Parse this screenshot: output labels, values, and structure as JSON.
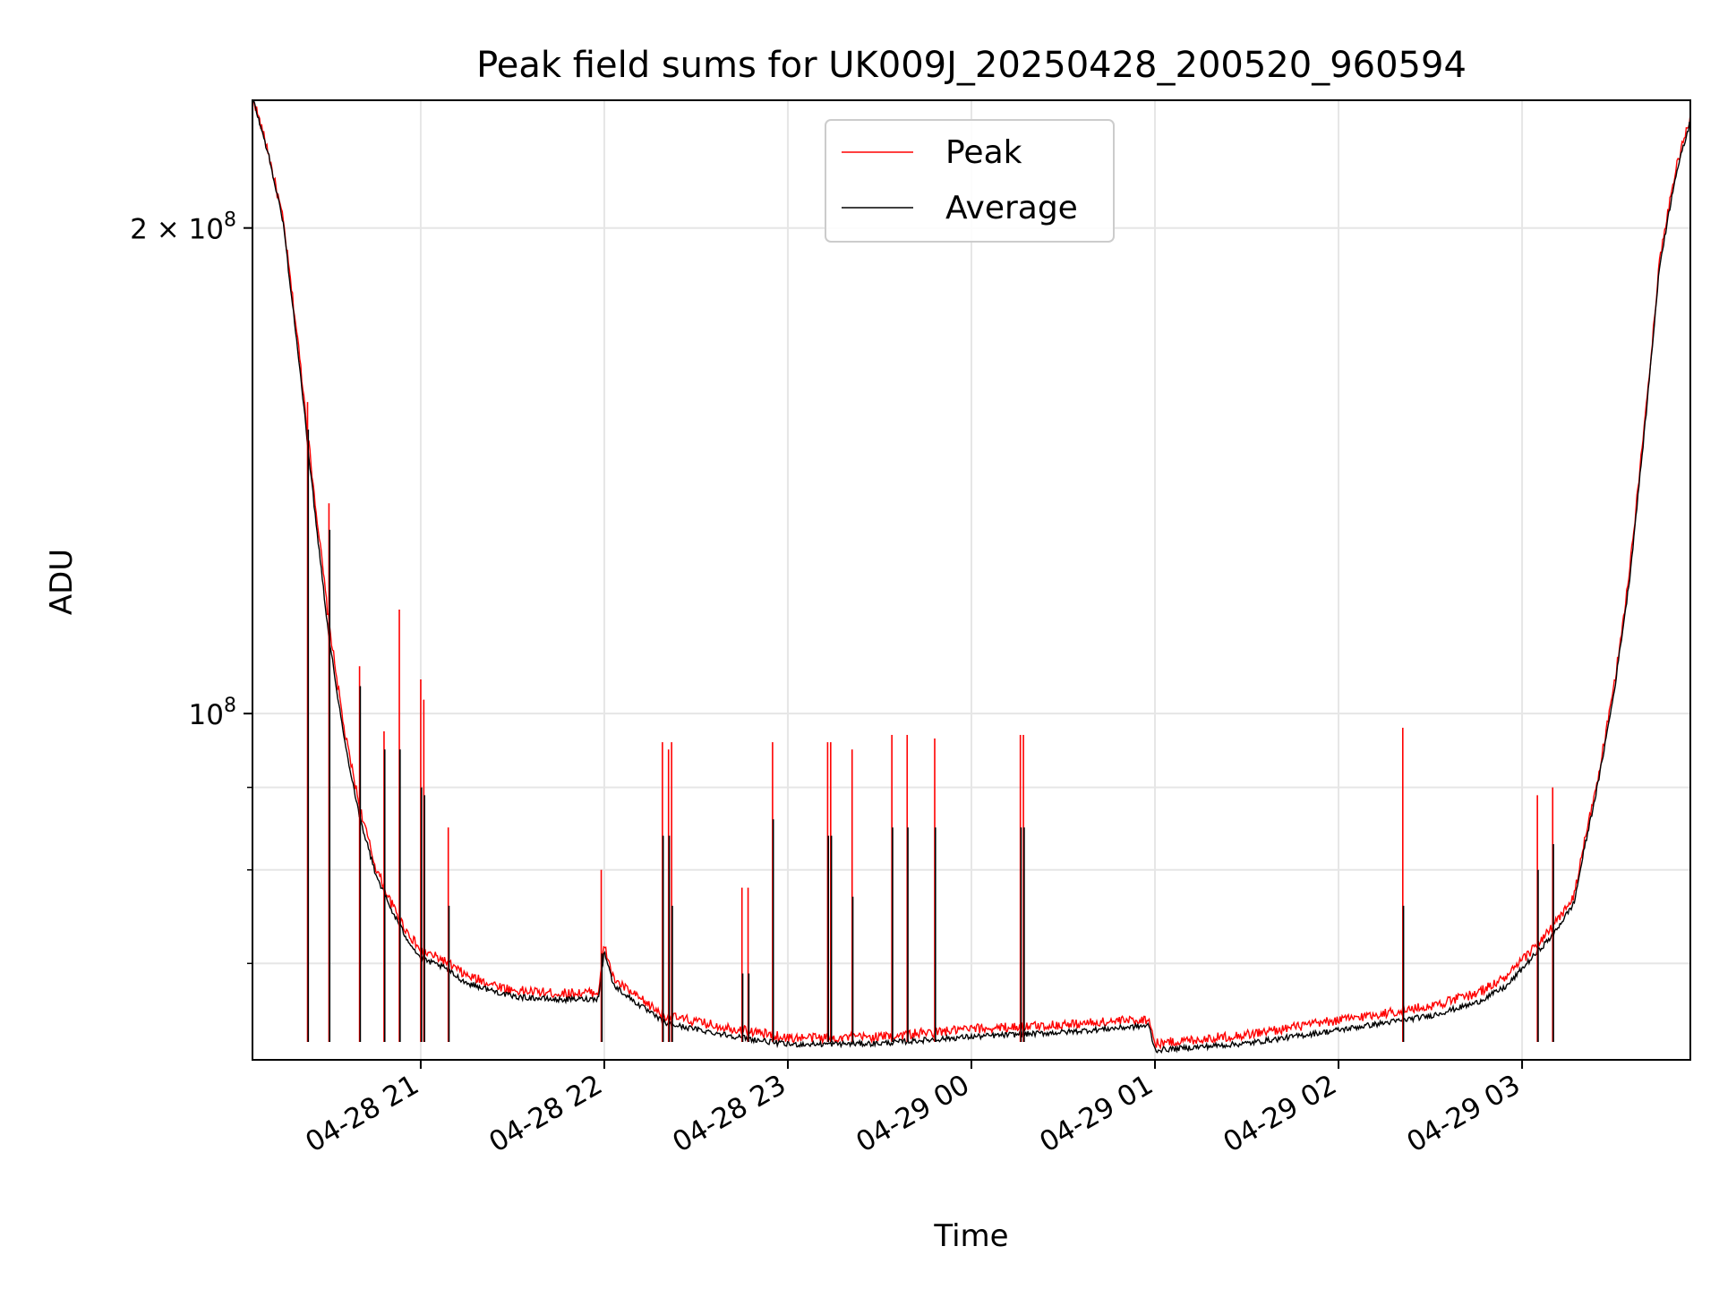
{
  "chart_data": {
    "type": "line",
    "title": "Peak field sums for UK009J_20250428_200520_960594",
    "xlabel": "Time",
    "ylabel": "ADU",
    "yscale": "log",
    "xlim": [
      "2025-04-28 20:05",
      "2025-04-29 03:55"
    ],
    "ylim": [
      61000000,
      240000000
    ],
    "grid": true,
    "legend_position": "top-center",
    "x_ticks": [
      "2025-04-28 21:00",
      "2025-04-28 22:00",
      "2025-04-28 23:00",
      "2025-04-29 00:00",
      "2025-04-29 01:00",
      "2025-04-29 02:00",
      "2025-04-29 03:00"
    ],
    "x_tick_labels": [
      "04-28 21",
      "04-28 22",
      "04-28 23",
      "04-29 00",
      "04-29 01",
      "04-29 02",
      "04-29 03"
    ],
    "y_major_ticks": [
      {
        "value": 100000000,
        "mantissa": "",
        "exponent": "8"
      },
      {
        "value": 200000000,
        "mantissa": "2",
        "exponent": "8"
      }
    ],
    "y_minor_ticks": [
      60000000,
      70000000,
      80000000,
      90000000,
      300000000
    ],
    "series": [
      {
        "name": "Peak",
        "color": "#ff0000",
        "x": [
          "2025-04-28 20:05",
          "2025-04-28 20:10",
          "2025-04-28 20:15",
          "2025-04-28 20:20",
          "2025-04-28 20:25",
          "2025-04-28 20:30",
          "2025-04-28 20:35",
          "2025-04-28 20:40",
          "2025-04-28 20:45",
          "2025-04-28 20:50",
          "2025-04-28 20:55",
          "2025-04-28 21:00",
          "2025-04-28 21:07",
          "2025-04-28 21:15",
          "2025-04-28 21:30",
          "2025-04-28 21:45",
          "2025-04-28 21:58",
          "2025-04-28 22:00",
          "2025-04-28 22:03",
          "2025-04-28 22:10",
          "2025-04-28 22:20",
          "2025-04-28 22:35",
          "2025-04-28 22:50",
          "2025-04-28 23:00",
          "2025-04-28 23:30",
          "2025-04-29 00:00",
          "2025-04-29 00:30",
          "2025-04-29 00:58",
          "2025-04-29 01:00",
          "2025-04-29 01:30",
          "2025-04-29 02:00",
          "2025-04-29 02:30",
          "2025-04-29 02:45",
          "2025-04-29 02:55",
          "2025-04-29 03:00",
          "2025-04-29 03:10",
          "2025-04-29 03:17",
          "2025-04-29 03:20",
          "2025-04-29 03:25",
          "2025-04-29 03:30",
          "2025-04-29 03:35",
          "2025-04-29 03:40",
          "2025-04-29 03:45",
          "2025-04-29 03:50",
          "2025-04-29 03:55"
        ],
        "values": [
          240000000,
          222000000,
          201000000,
          168000000,
          137000000,
          113000000,
          97000000,
          87000000,
          80000000,
          76000000,
          73000000,
          70800000,
          69900000,
          68300000,
          66900000,
          66600000,
          66700000,
          71300000,
          68000000,
          66400000,
          64500000,
          63700000,
          63000000,
          62500000,
          62600000,
          63300000,
          63700000,
          64200000,
          62000000,
          62800000,
          64100000,
          65400000,
          66600000,
          68200000,
          69800000,
          73200000,
          76500000,
          82000000,
          91000000,
          103000000,
          121000000,
          150000000,
          190000000,
          215000000,
          233000000
        ]
      },
      {
        "name": "Average",
        "color": "#000000",
        "x": [
          "2025-04-28 20:05",
          "2025-04-28 20:10",
          "2025-04-28 20:15",
          "2025-04-28 20:20",
          "2025-04-28 20:25",
          "2025-04-28 20:30",
          "2025-04-28 20:35",
          "2025-04-28 20:40",
          "2025-04-28 20:45",
          "2025-04-28 20:50",
          "2025-04-28 20:55",
          "2025-04-28 21:00",
          "2025-04-28 21:07",
          "2025-04-28 21:15",
          "2025-04-28 21:30",
          "2025-04-28 21:45",
          "2025-04-28 21:58",
          "2025-04-28 22:00",
          "2025-04-28 22:03",
          "2025-04-28 22:10",
          "2025-04-28 22:20",
          "2025-04-28 22:35",
          "2025-04-28 22:50",
          "2025-04-28 23:00",
          "2025-04-28 23:30",
          "2025-04-29 00:00",
          "2025-04-29 00:30",
          "2025-04-29 00:58",
          "2025-04-29 01:00",
          "2025-04-29 01:30",
          "2025-04-29 02:00",
          "2025-04-29 02:30",
          "2025-04-29 02:45",
          "2025-04-29 02:55",
          "2025-04-29 03:00",
          "2025-04-29 03:10",
          "2025-04-29 03:17",
          "2025-04-29 03:20",
          "2025-04-29 03:25",
          "2025-04-29 03:30",
          "2025-04-29 03:35",
          "2025-04-29 03:40",
          "2025-04-29 03:45",
          "2025-04-29 03:50",
          "2025-04-29 03:55"
        ],
        "values": [
          240000000,
          222000000,
          201000000,
          166000000,
          135000000,
          111000000,
          96000000,
          86000000,
          79500000,
          75500000,
          72500000,
          70200000,
          69400000,
          67800000,
          66500000,
          66200000,
          66300000,
          71000000,
          67600000,
          66000000,
          64000000,
          63200000,
          62500000,
          62100000,
          62200000,
          62800000,
          63200000,
          63800000,
          61600000,
          62200000,
          63400000,
          64700000,
          65900000,
          67500000,
          69200000,
          72600000,
          76000000,
          81500000,
          90500000,
          102500000,
          120000000,
          149000000,
          189000000,
          214000000,
          232000000
        ]
      }
    ],
    "spikes": {
      "x": [
        "2025-04-28 20:23",
        "2025-04-28 20:30",
        "2025-04-28 20:40",
        "2025-04-28 20:48",
        "2025-04-28 20:53",
        "2025-04-28 21:00",
        "2025-04-28 21:01",
        "2025-04-28 21:09",
        "2025-04-28 21:59",
        "2025-04-28 22:19",
        "2025-04-28 22:21",
        "2025-04-28 22:22",
        "2025-04-28 22:45",
        "2025-04-28 22:47",
        "2025-04-28 22:55",
        "2025-04-28 23:13",
        "2025-04-28 23:14",
        "2025-04-28 23:21",
        "2025-04-28 23:34",
        "2025-04-28 23:39",
        "2025-04-28 23:48",
        "2025-04-29 00:16",
        "2025-04-29 00:17",
        "2025-04-29 02:21",
        "2025-04-29 03:05",
        "2025-04-29 03:10"
      ],
      "peak": [
        156000000,
        135000000,
        107000000,
        97500000,
        116000000,
        105000000,
        102000000,
        85000000,
        80000000,
        96000000,
        95000000,
        96000000,
        78000000,
        78000000,
        96000000,
        96000000,
        96000000,
        95000000,
        97000000,
        97000000,
        96500000,
        97000000,
        97000000,
        98000000,
        89000000,
        90000000
      ],
      "average": [
        150000000,
        130000000,
        104000000,
        95000000,
        95000000,
        90000000,
        89000000,
        76000000,
        71000000,
        84000000,
        84000000,
        76000000,
        69000000,
        69000000,
        86000000,
        84000000,
        84000000,
        77000000,
        85000000,
        85000000,
        85000000,
        85000000,
        85000000,
        76000000,
        80000000,
        83000000
      ]
    }
  }
}
